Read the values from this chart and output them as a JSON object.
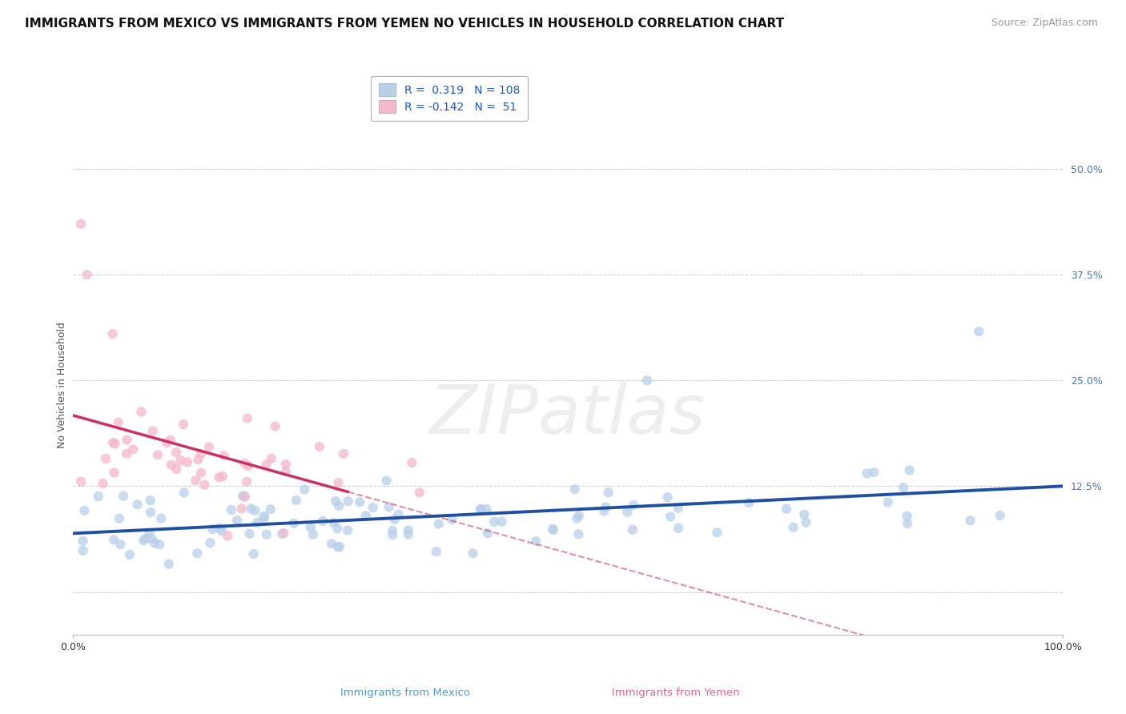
{
  "title": "IMMIGRANTS FROM MEXICO VS IMMIGRANTS FROM YEMEN NO VEHICLES IN HOUSEHOLD CORRELATION CHART",
  "source": "Source: ZipAtlas.com",
  "ylabel": "No Vehicles in Household",
  "xlim": [
    0.0,
    1.0
  ],
  "ylim": [
    -0.05,
    0.54
  ],
  "mexico_R": 0.319,
  "mexico_N": 108,
  "yemen_R": -0.142,
  "yemen_N": 51,
  "mexico_color": "#b8d0ea",
  "mexico_line_color": "#1e4fa0",
  "yemen_color": "#f5b8cb",
  "yemen_line_color": "#cc3060",
  "watermark_color": "#e0e0e0",
  "background_color": "#ffffff",
  "legend_text_color": "#1a56c4",
  "grid_color": "#ccccdd",
  "title_fontsize": 11,
  "source_fontsize": 9,
  "legend_fontsize": 10,
  "tick_fontsize": 9,
  "ylabel_fontsize": 9,
  "ytick_vals": [
    0.0,
    0.125,
    0.25,
    0.375,
    0.5
  ],
  "ytick_labels": [
    "",
    "12.5%",
    "25.0%",
    "37.5%",
    "50.0%"
  ],
  "bottom_labels": [
    "Immigrants from Mexico",
    "Immigrants from Yemen"
  ],
  "bottom_label_colors": [
    "#5599cc",
    "#dd6688"
  ],
  "scatter_size": 80,
  "scatter_alpha": 0.75
}
